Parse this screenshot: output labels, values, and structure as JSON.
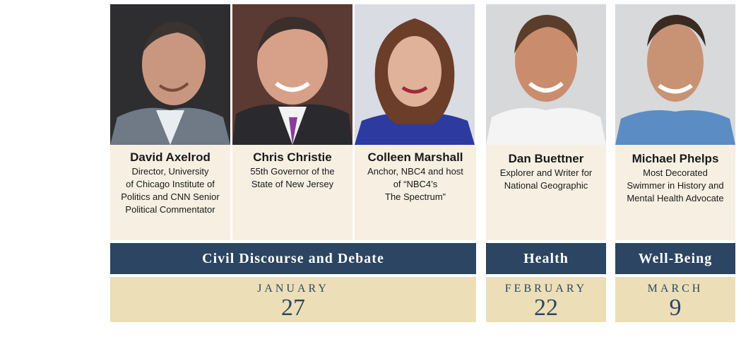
{
  "speakers": [
    {
      "name": "David Axelrod",
      "role": "Director, University\nof Chicago Institute of\nPolitics and CNN Senior\nPolitical Commentator"
    },
    {
      "name": "Chris Christie",
      "role": "55th Governor of the\nState of New Jersey"
    },
    {
      "name": "Colleen Marshall",
      "role": "Anchor, NBC4 and host\nof “NBC4’s\nThe Spectrum”"
    },
    {
      "name": "Dan Buettner",
      "role": "Explorer and Writer for\nNational Geographic"
    },
    {
      "name": "Michael Phelps",
      "role": "Most Decorated\nSwimmer in History and\nMental Health Advocate"
    }
  ],
  "events": [
    {
      "theme": "Civil Discourse and Debate",
      "month": "JANUARY",
      "day": "27"
    },
    {
      "theme": "Health",
      "month": "FEBRUARY",
      "day": "22"
    },
    {
      "theme": "Well-Being",
      "month": "MARCH",
      "day": "9"
    }
  ],
  "colors": {
    "band": "#2b4563",
    "card": "#f7efe2",
    "date": "#ecdfb7"
  }
}
